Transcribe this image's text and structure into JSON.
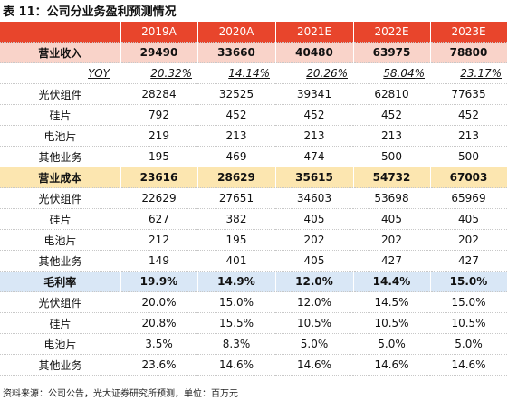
{
  "title": "表 11：公司分业务盈利预测情况",
  "table": {
    "header": [
      "",
      "2019A",
      "2020A",
      "2021E",
      "2022E",
      "2023E"
    ],
    "rows": [
      [
        "营业收入",
        "29490",
        "33660",
        "40480",
        "63975",
        "78800"
      ],
      [
        "YOY",
        "20.32%",
        "14.14%",
        "20.26%",
        "58.04%",
        "23.17%"
      ],
      [
        "光伏组件",
        "28284",
        "32525",
        "39341",
        "62810",
        "77635"
      ],
      [
        "硅片",
        "792",
        "452",
        "452",
        "452",
        "452"
      ],
      [
        "电池片",
        "219",
        "213",
        "213",
        "213",
        "213"
      ],
      [
        "其他业务",
        "195",
        "469",
        "474",
        "500",
        "500"
      ],
      [
        "营业成本",
        "23616",
        "28629",
        "35615",
        "54732",
        "67003"
      ],
      [
        "光伏组件",
        "22629",
        "27651",
        "34603",
        "53698",
        "65969"
      ],
      [
        "硅片",
        "627",
        "382",
        "405",
        "405",
        "405"
      ],
      [
        "电池片",
        "212",
        "195",
        "202",
        "202",
        "202"
      ],
      [
        "其他业务",
        "149",
        "401",
        "405",
        "427",
        "427"
      ],
      [
        "毛利率",
        "19.9%",
        "14.9%",
        "12.0%",
        "14.4%",
        "15.0%"
      ],
      [
        "光伏组件",
        "20.0%",
        "15.0%",
        "12.0%",
        "14.5%",
        "15.0%"
      ],
      [
        "硅片",
        "20.8%",
        "15.5%",
        "10.5%",
        "10.5%",
        "10.5%"
      ],
      [
        "电池片",
        "3.5%",
        "8.3%",
        "5.0%",
        "5.0%",
        "5.0%"
      ],
      [
        "其他业务",
        "23.6%",
        "14.6%",
        "14.6%",
        "14.6%",
        "14.6%"
      ]
    ]
  },
  "source": "资料来源：公司公告，光大证券研究所预测，单位：百万元"
}
